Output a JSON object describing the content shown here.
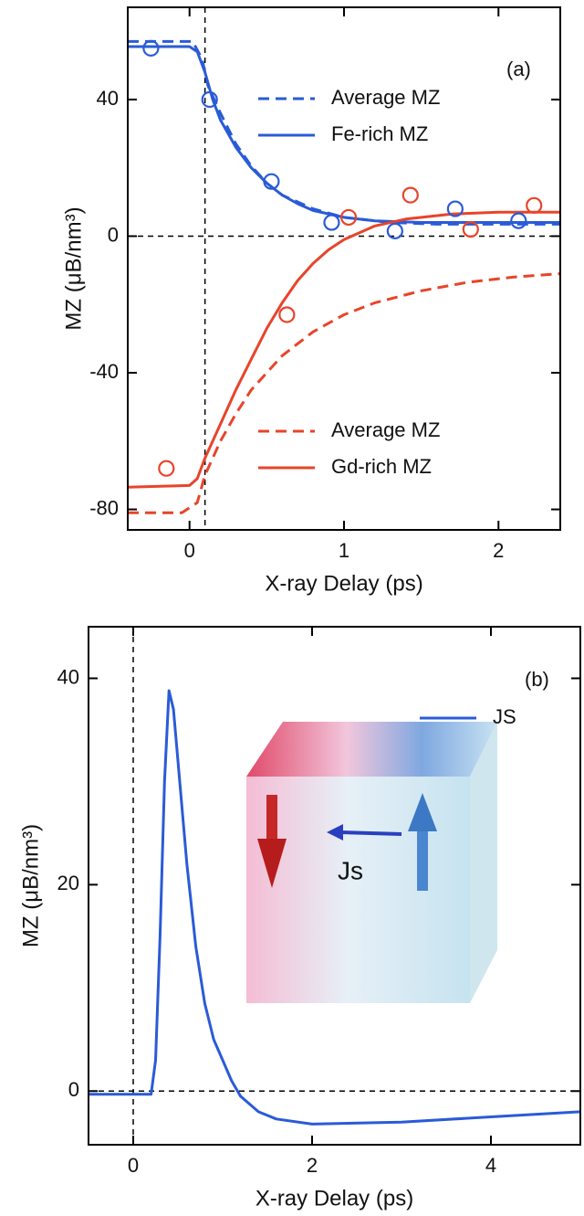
{
  "chart_data": [
    {
      "type": "line",
      "panel_label": "(a)",
      "xlabel": "X-ray Delay  (ps)",
      "ylabel": "MZ  (μB/nm³)",
      "xlim": [
        -0.4,
        2.4
      ],
      "ylim": [
        -86,
        67
      ],
      "xticks": [
        0,
        1,
        2
      ],
      "yticks": [
        -80,
        -40,
        0,
        40
      ],
      "vlines": [
        0.1
      ],
      "hlines": [
        0
      ],
      "series": [
        {
          "name": "Average MZ",
          "color": "#2a5bd7",
          "dashed": true,
          "legend": "upper right",
          "x": [
            -0.4,
            0.02,
            0.08,
            0.12,
            0.2,
            0.3,
            0.4,
            0.5,
            0.6,
            0.8,
            1.0,
            1.3,
            1.6,
            2.0,
            2.4
          ],
          "values": [
            57,
            57,
            52,
            44,
            36,
            27,
            20.5,
            15.5,
            12,
            8,
            5.5,
            4,
            3.5,
            3.5,
            3.5
          ]
        },
        {
          "name": "Fe-rich MZ",
          "color": "#2a5bd7",
          "dashed": false,
          "legend": "upper right",
          "x": [
            -0.4,
            0,
            0.05,
            0.1,
            0.15,
            0.2,
            0.3,
            0.4,
            0.5,
            0.6,
            0.7,
            0.8,
            1.0,
            1.2,
            1.5,
            2.0,
            2.4
          ],
          "values": [
            55.5,
            55.5,
            54,
            48,
            40,
            34,
            26,
            20,
            15.5,
            12,
            9.5,
            7.5,
            5.5,
            4.5,
            4,
            4,
            4
          ]
        },
        {
          "name": "Average MZ",
          "color": "#e8442a",
          "dashed": true,
          "legend": "lower right",
          "x": [
            -0.4,
            -0.05,
            0.05,
            0.1,
            0.2,
            0.3,
            0.4,
            0.6,
            0.8,
            1.0,
            1.2,
            1.5,
            1.8,
            2.1,
            2.4
          ],
          "values": [
            -81,
            -81,
            -78,
            -70,
            -60,
            -52,
            -45,
            -35,
            -28,
            -23,
            -19.5,
            -16,
            -13.5,
            -12,
            -11
          ]
        },
        {
          "name": "Gd-rich MZ",
          "color": "#e8442a",
          "dashed": false,
          "legend": "lower right",
          "x": [
            -0.4,
            0,
            0.05,
            0.1,
            0.2,
            0.3,
            0.4,
            0.5,
            0.6,
            0.7,
            0.8,
            0.9,
            1.0,
            1.2,
            1.4,
            1.7,
            2.0,
            2.4
          ],
          "values": [
            -73.5,
            -73,
            -71,
            -65,
            -55,
            -45,
            -36,
            -27,
            -19.5,
            -13,
            -8,
            -4,
            -1,
            3,
            5,
            6.5,
            7,
            7
          ]
        },
        {
          "color": "#2a5bd7",
          "marker": "open-circle",
          "x": [
            -0.25,
            0.13,
            0.53,
            0.92,
            1.33,
            1.72,
            2.13
          ],
          "values": [
            55,
            40,
            16,
            4,
            1.5,
            8,
            4.5
          ]
        },
        {
          "color": "#e8442a",
          "marker": "open-circle",
          "x": [
            -0.15,
            0.63,
            1.03,
            1.43,
            1.82,
            2.23
          ],
          "values": [
            -68,
            -23,
            5.5,
            12,
            2,
            9
          ]
        }
      ]
    },
    {
      "type": "line",
      "panel_label": "(b)",
      "xlabel": "X-ray Delay  (ps)",
      "ylabel": "MZ  (μB/nm³)",
      "inset_label": "Js",
      "xlim": [
        -0.5,
        5
      ],
      "ylim": [
        -5.2,
        45
      ],
      "xticks": [
        0,
        2,
        4
      ],
      "yticks": [
        0,
        20,
        40
      ],
      "vlines": [
        0
      ],
      "hlines": [
        0
      ],
      "series": [
        {
          "name": "JS",
          "color": "#2a5bd7",
          "dashed": false,
          "legend": "upper right",
          "x": [
            -0.5,
            0.2,
            0.25,
            0.3,
            0.35,
            0.4,
            0.45,
            0.5,
            0.6,
            0.7,
            0.8,
            0.9,
            1.0,
            1.1,
            1.2,
            1.4,
            1.6,
            2.0,
            3.0,
            4.0,
            5.0
          ],
          "values": [
            -0.3,
            -0.3,
            3,
            15,
            30,
            38.8,
            37,
            32,
            22,
            14,
            8.5,
            5,
            3,
            1,
            -0.5,
            -2,
            -2.7,
            -3.2,
            -3,
            -2.5,
            -2
          ]
        }
      ]
    }
  ]
}
